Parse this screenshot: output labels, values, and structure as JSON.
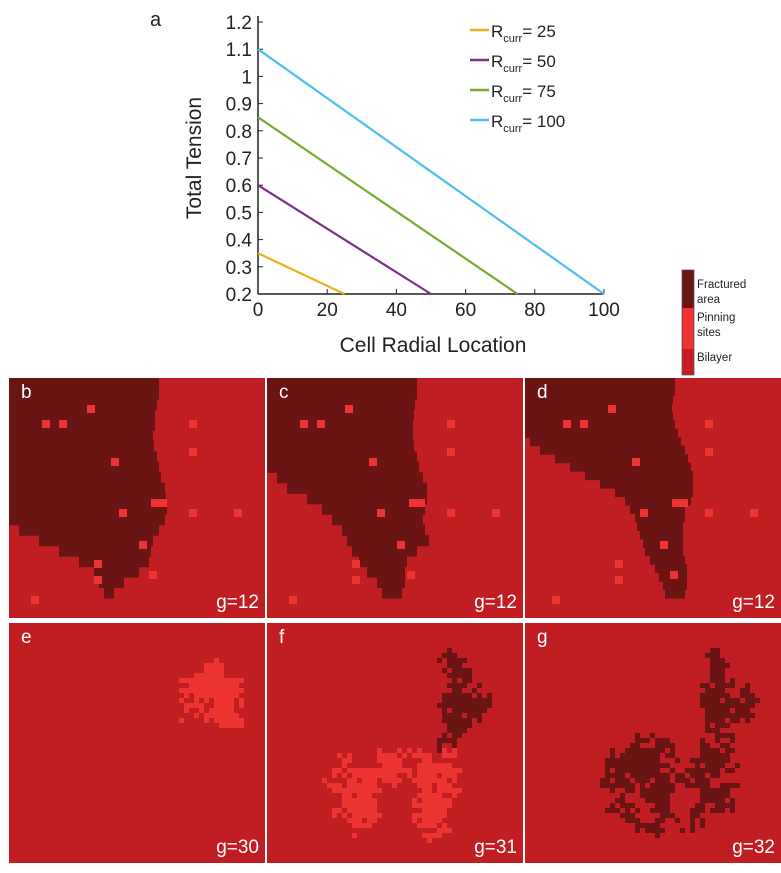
{
  "chart_data": {
    "type": "line",
    "panel_label": "a",
    "xlabel": "Cell Radial Location",
    "ylabel": "Total Tension",
    "xlim": [
      0,
      100
    ],
    "ylim": [
      0.2,
      1.2
    ],
    "xticks": [
      "0",
      "20",
      "40",
      "60",
      "80",
      "100"
    ],
    "yticks": [
      "0.2",
      "0.3",
      "0.4",
      "0.5",
      "0.6",
      "0.7",
      "0.8",
      "0.9",
      "1",
      "1.1",
      "1.2"
    ],
    "grid": false,
    "legend_position": "top-right",
    "series": [
      {
        "name": "R_curr = 25",
        "label_main": "R",
        "label_sub": "curr",
        "label_tail": "= 25",
        "color": "#edb120",
        "x": [
          0,
          25
        ],
        "y": [
          0.35,
          0.2
        ]
      },
      {
        "name": "R_curr = 50",
        "label_main": "R",
        "label_sub": "curr",
        "label_tail": "= 50",
        "color": "#7e2f8e",
        "x": [
          0,
          50
        ],
        "y": [
          0.6,
          0.2
        ]
      },
      {
        "name": "R_curr = 75",
        "label_main": "R",
        "label_sub": "curr",
        "label_tail": "= 75",
        "color": "#77ac30",
        "x": [
          0,
          75
        ],
        "y": [
          0.85,
          0.2
        ]
      },
      {
        "name": "R_curr = 100",
        "label_main": "R",
        "label_sub": "curr",
        "label_tail": "= 100",
        "color": "#4dbeee",
        "x": [
          0,
          100
        ],
        "y": [
          1.1,
          0.2
        ]
      }
    ]
  },
  "colorbar": {
    "labels": [
      "Fractured area",
      "Pinning sites",
      "Bilayer"
    ],
    "colors": [
      "#6b1414",
      "#ee3333",
      "#c01e23"
    ]
  },
  "colors": {
    "bilayer": "#c01e23",
    "fractured": "#6b1414",
    "pinning": "#ee3333"
  },
  "panels": [
    {
      "label": "b",
      "g_label": "g=12"
    },
    {
      "label": "c",
      "g_label": "g=12"
    },
    {
      "label": "d",
      "g_label": "g=12"
    },
    {
      "label": "e",
      "g_label": "g=30"
    },
    {
      "label": "f",
      "g_label": "g=31"
    },
    {
      "label": "g",
      "g_label": "g=32"
    }
  ]
}
